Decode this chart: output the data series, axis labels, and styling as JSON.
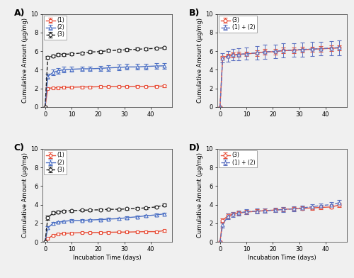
{
  "panel_A": {
    "title": "A)",
    "series": [
      {
        "label": "(1)",
        "color": "#e8503a",
        "marker": "s",
        "linestyle": "-",
        "x": [
          0,
          1,
          3,
          5,
          7,
          10,
          14,
          17,
          21,
          24,
          28,
          31,
          35,
          38,
          42,
          45
        ],
        "y": [
          0,
          2.0,
          2.05,
          2.08,
          2.1,
          2.12,
          2.15,
          2.15,
          2.18,
          2.2,
          2.2,
          2.2,
          2.22,
          2.2,
          2.22,
          2.25
        ],
        "yerr": [
          0,
          0.1,
          0.1,
          0.1,
          0.1,
          0.1,
          0.1,
          0.1,
          0.1,
          0.1,
          0.1,
          0.1,
          0.1,
          0.1,
          0.1,
          0.1
        ]
      },
      {
        "label": "(2)",
        "color": "#4a6ec3",
        "marker": "^",
        "linestyle": "-",
        "x": [
          0,
          1,
          3,
          5,
          7,
          10,
          14,
          17,
          21,
          24,
          28,
          31,
          35,
          38,
          42,
          45
        ],
        "y": [
          0,
          3.3,
          3.7,
          3.9,
          4.0,
          4.05,
          4.1,
          4.1,
          4.15,
          4.2,
          4.25,
          4.3,
          4.3,
          4.35,
          4.4,
          4.42
        ],
        "yerr": [
          0,
          0.3,
          0.3,
          0.3,
          0.3,
          0.25,
          0.25,
          0.25,
          0.25,
          0.3,
          0.3,
          0.3,
          0.3,
          0.3,
          0.3,
          0.3
        ]
      },
      {
        "label": "(3)",
        "color": "#222222",
        "marker": "o",
        "linestyle": "--",
        "x": [
          0,
          1,
          3,
          5,
          7,
          10,
          14,
          17,
          21,
          24,
          28,
          31,
          35,
          38,
          42,
          45
        ],
        "y": [
          0,
          5.3,
          5.5,
          5.6,
          5.65,
          5.7,
          5.8,
          5.9,
          5.95,
          6.05,
          6.1,
          6.15,
          6.2,
          6.25,
          6.3,
          6.35
        ],
        "yerr": [
          0,
          0.15,
          0.15,
          0.15,
          0.15,
          0.15,
          0.15,
          0.15,
          0.15,
          0.15,
          0.15,
          0.15,
          0.15,
          0.15,
          0.15,
          0.15
        ]
      }
    ],
    "ylim": [
      0,
      10
    ],
    "xlim": [
      -1,
      48
    ],
    "yticks": [
      0,
      2,
      4,
      6,
      8,
      10
    ],
    "xticks": [
      0,
      10,
      20,
      30,
      40
    ],
    "show_ylabel": true,
    "show_xlabel": false
  },
  "panel_B": {
    "title": "B)",
    "series": [
      {
        "label": "(3)",
        "color": "#e8503a",
        "marker": "o",
        "linestyle": "-",
        "x": [
          0,
          1,
          3,
          5,
          7,
          10,
          14,
          17,
          21,
          24,
          28,
          31,
          35,
          38,
          42,
          45
        ],
        "y": [
          0,
          5.3,
          5.5,
          5.6,
          5.65,
          5.7,
          5.8,
          5.9,
          5.95,
          6.05,
          6.1,
          6.15,
          6.2,
          6.25,
          6.3,
          6.35
        ],
        "yerr": [
          0,
          0.2,
          0.2,
          0.25,
          0.25,
          0.25,
          0.3,
          0.3,
          0.3,
          0.3,
          0.3,
          0.3,
          0.3,
          0.3,
          0.3,
          0.3
        ]
      },
      {
        "label": "(1) + (2)",
        "color": "#5a6fc0",
        "marker": "^",
        "linestyle": "--",
        "x": [
          0,
          1,
          3,
          5,
          7,
          10,
          14,
          17,
          21,
          24,
          28,
          31,
          35,
          38,
          42,
          45
        ],
        "y": [
          0,
          5.25,
          5.45,
          5.6,
          5.65,
          5.72,
          5.82,
          5.92,
          5.98,
          6.08,
          6.12,
          6.18,
          6.22,
          6.27,
          6.32,
          6.38
        ],
        "yerr": [
          0,
          0.5,
          0.55,
          0.6,
          0.65,
          0.65,
          0.7,
          0.75,
          0.75,
          0.75,
          0.75,
          0.75,
          0.75,
          0.75,
          0.75,
          0.8
        ]
      }
    ],
    "ylim": [
      0,
      10
    ],
    "xlim": [
      -1,
      48
    ],
    "yticks": [
      0,
      2,
      4,
      6,
      8,
      10
    ],
    "xticks": [
      0,
      10,
      20,
      30,
      40
    ],
    "show_ylabel": true,
    "show_xlabel": false
  },
  "panel_C": {
    "title": "C)",
    "series": [
      {
        "label": "(1)",
        "color": "#e8503a",
        "marker": "s",
        "linestyle": "-",
        "x": [
          0,
          1,
          3,
          5,
          7,
          10,
          14,
          17,
          21,
          24,
          28,
          31,
          35,
          38,
          42,
          45
        ],
        "y": [
          0,
          0.35,
          0.7,
          0.85,
          0.9,
          0.95,
          1.0,
          1.0,
          1.02,
          1.03,
          1.05,
          1.05,
          1.08,
          1.1,
          1.1,
          1.2
        ],
        "yerr": [
          0,
          0.1,
          0.1,
          0.08,
          0.08,
          0.08,
          0.08,
          0.08,
          0.08,
          0.08,
          0.08,
          0.08,
          0.08,
          0.08,
          0.08,
          0.1
        ]
      },
      {
        "label": "(2)",
        "color": "#4a6ec3",
        "marker": "^",
        "linestyle": "-",
        "x": [
          0,
          1,
          3,
          5,
          7,
          10,
          14,
          17,
          21,
          24,
          28,
          31,
          35,
          38,
          42,
          45
        ],
        "y": [
          0,
          1.5,
          2.0,
          2.1,
          2.2,
          2.3,
          2.3,
          2.35,
          2.4,
          2.45,
          2.5,
          2.6,
          2.7,
          2.8,
          2.9,
          3.0
        ],
        "yerr": [
          0,
          0.15,
          0.15,
          0.12,
          0.12,
          0.12,
          0.12,
          0.12,
          0.12,
          0.12,
          0.12,
          0.12,
          0.12,
          0.12,
          0.12,
          0.15
        ]
      },
      {
        "label": "(3)",
        "color": "#222222",
        "marker": "o",
        "linestyle": "--",
        "x": [
          0,
          1,
          3,
          5,
          7,
          10,
          14,
          17,
          21,
          24,
          28,
          31,
          35,
          38,
          42,
          45
        ],
        "y": [
          0,
          2.6,
          3.1,
          3.2,
          3.3,
          3.35,
          3.4,
          3.42,
          3.45,
          3.5,
          3.5,
          3.55,
          3.6,
          3.65,
          3.75,
          3.95
        ],
        "yerr": [
          0,
          0.2,
          0.15,
          0.12,
          0.12,
          0.12,
          0.12,
          0.12,
          0.12,
          0.12,
          0.12,
          0.12,
          0.12,
          0.12,
          0.12,
          0.15
        ]
      }
    ],
    "ylim": [
      0,
      10
    ],
    "xlim": [
      -1,
      48
    ],
    "yticks": [
      0,
      2,
      4,
      6,
      8,
      10
    ],
    "xticks": [
      0,
      10,
      20,
      30,
      40
    ],
    "show_ylabel": true,
    "show_xlabel": true
  },
  "panel_D": {
    "title": "D)",
    "series": [
      {
        "label": "(3)",
        "color": "#e8503a",
        "marker": "o",
        "linestyle": "-",
        "x": [
          0,
          1,
          3,
          5,
          7,
          10,
          14,
          17,
          21,
          24,
          28,
          31,
          35,
          38,
          42,
          45
        ],
        "y": [
          0,
          2.3,
          2.8,
          3.0,
          3.1,
          3.2,
          3.3,
          3.35,
          3.42,
          3.5,
          3.55,
          3.6,
          3.65,
          3.7,
          3.75,
          3.95
        ],
        "yerr": [
          0,
          0.25,
          0.25,
          0.2,
          0.2,
          0.2,
          0.2,
          0.2,
          0.2,
          0.2,
          0.2,
          0.2,
          0.2,
          0.2,
          0.2,
          0.25
        ]
      },
      {
        "label": "(1) + (2)",
        "color": "#5a6fc0",
        "marker": "^",
        "linestyle": "--",
        "x": [
          0,
          1,
          3,
          5,
          7,
          10,
          14,
          17,
          21,
          24,
          28,
          31,
          35,
          38,
          42,
          45
        ],
        "y": [
          0,
          1.85,
          2.75,
          2.95,
          3.1,
          3.25,
          3.3,
          3.35,
          3.42,
          3.48,
          3.55,
          3.65,
          3.78,
          3.9,
          4.0,
          4.2
        ],
        "yerr": [
          0,
          0.3,
          0.3,
          0.25,
          0.25,
          0.25,
          0.25,
          0.25,
          0.25,
          0.25,
          0.25,
          0.25,
          0.25,
          0.25,
          0.25,
          0.3
        ]
      }
    ],
    "ylim": [
      0,
      10
    ],
    "xlim": [
      -1,
      48
    ],
    "yticks": [
      0,
      2,
      4,
      6,
      8,
      10
    ],
    "xticks": [
      0,
      10,
      20,
      30,
      40
    ],
    "show_ylabel": true,
    "show_xlabel": true
  },
  "xlabel": "Incubation Time (days)",
  "ylabel": "Cumulative Amount (μg/mg)",
  "background_color": "#f0f0f0",
  "marker_size": 3.5,
  "linewidth": 1.0,
  "capsize": 2,
  "elinewidth": 0.7
}
